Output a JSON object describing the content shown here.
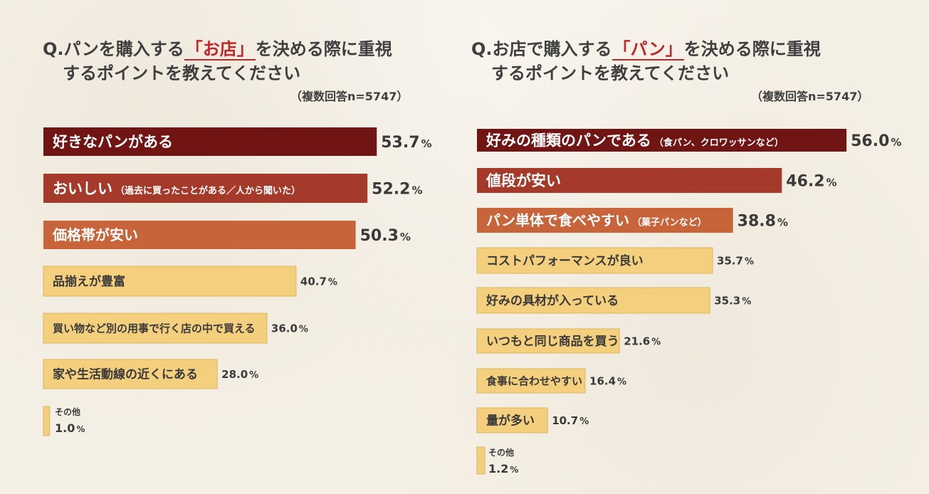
{
  "colors": {
    "tier1": "#701414",
    "tier2": "#a63a2a",
    "tier3": "#c8643a",
    "tier4": "#f4cf7e",
    "tier4_border": "#e0b35c",
    "highlight": "#c0282a"
  },
  "left": {
    "title_pre": "Q.パンを購入する",
    "title_highlight": "「お店」",
    "title_post": "を決める際に重視",
    "title_line2": "するポイントを教えてください",
    "note": "（複数回答n=5747）"
  },
  "right": {
    "title_pre": "Q.お店で購入する",
    "title_highlight": "「パン」",
    "title_post": "を決める際に重視",
    "title_line2": "するポイントを教えてください",
    "note": "（複数回答n=5747）"
  },
  "chart_data": [
    {
      "type": "bar",
      "orientation": "horizontal",
      "unit": "%",
      "categories": [
        {
          "label": "好きなパンがある",
          "sub": ""
        },
        {
          "label": "おいしい",
          "sub": "（過去に買ったことがある／人から聞いた）"
        },
        {
          "label": "価格帯が安い",
          "sub": ""
        },
        {
          "label": "品揃えが豊富",
          "sub": ""
        },
        {
          "label": "買い物など別の用事で行く店の中で買える",
          "sub": ""
        },
        {
          "label": "家や生活動線の近くにある",
          "sub": ""
        },
        {
          "label": "その他",
          "sub": ""
        }
      ],
      "values": [
        53.7,
        52.2,
        50.3,
        40.7,
        36.0,
        28.0,
        1.0
      ],
      "value_labels": [
        "53.7",
        "52.2",
        "50.3",
        "40.7",
        "36.0",
        "28.0",
        "1.0"
      ]
    },
    {
      "type": "bar",
      "orientation": "horizontal",
      "unit": "%",
      "categories": [
        {
          "label": "好みの種類のパンである",
          "sub": "（食パン、クロワッサンなど）"
        },
        {
          "label": "値段が安い",
          "sub": ""
        },
        {
          "label": "パン単体で食べやすい",
          "sub": "（菓子パンなど）"
        },
        {
          "label": "コストパフォーマンスが良い",
          "sub": ""
        },
        {
          "label": "好みの具材が入っている",
          "sub": ""
        },
        {
          "label": "いつもと同じ商品を買う",
          "sub": ""
        },
        {
          "label": "食事に合わせやすい",
          "sub": ""
        },
        {
          "label": "量が多い",
          "sub": ""
        },
        {
          "label": "その他",
          "sub": ""
        }
      ],
      "values": [
        56.0,
        46.2,
        38.8,
        35.7,
        35.3,
        21.6,
        16.4,
        10.7,
        1.2
      ],
      "value_labels": [
        "56.0",
        "46.2",
        "38.8",
        "35.7",
        "35.3",
        "21.6",
        "16.4",
        "10.7",
        "1.2"
      ]
    }
  ]
}
